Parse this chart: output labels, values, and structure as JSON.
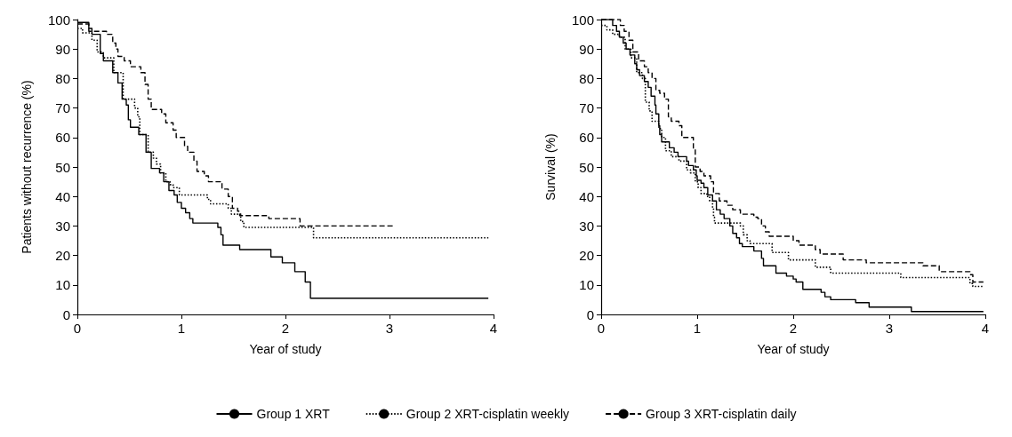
{
  "chart_data": [
    {
      "type": "step",
      "xlabel": "Year of study",
      "ylabel": "Patients without recurrence (%)",
      "xlim": [
        0,
        4
      ],
      "xticks": [
        0,
        1,
        2,
        3,
        4
      ],
      "ylim": [
        0,
        100
      ],
      "yticks": [
        0,
        10,
        20,
        30,
        40,
        50,
        60,
        70,
        80,
        90,
        100
      ],
      "grid": false,
      "legend": "bottom",
      "series": [
        {
          "name": "Group 1 XRT",
          "color": "#000000",
          "line_style": "solid",
          "x": [
            0,
            0.11,
            0.14,
            0.22,
            0.25,
            0.34,
            0.39,
            0.43,
            0.47,
            0.49,
            0.51,
            0.59,
            0.66,
            0.71,
            0.79,
            0.83,
            0.88,
            0.93,
            0.96,
            1.0,
            1.04,
            1.08,
            1.11,
            1.35,
            1.38,
            1.4,
            1.56,
            1.86,
            1.97,
            2.09,
            2.19,
            2.24,
            3.95
          ],
          "values": [
            99,
            97,
            95,
            88.5,
            86,
            82,
            78.5,
            73,
            71,
            66,
            63.5,
            61,
            55,
            49.5,
            48,
            45,
            42,
            40.5,
            38,
            36,
            34.5,
            32.5,
            31,
            29.5,
            27,
            23.5,
            22,
            19.5,
            17.5,
            14.5,
            11,
            5.5,
            5.5
          ]
        },
        {
          "name": "Group 2 XRT-cisplatin weekly",
          "color": "#000000",
          "line_style": "dotted",
          "x": [
            0,
            0.05,
            0.14,
            0.19,
            0.25,
            0.35,
            0.44,
            0.55,
            0.58,
            0.6,
            0.68,
            0.73,
            0.76,
            0.8,
            0.85,
            0.89,
            0.92,
            0.98,
            1.25,
            1.28,
            1.45,
            1.48,
            1.57,
            1.6,
            2.27,
            3.95
          ],
          "values": [
            97,
            95.5,
            93,
            89,
            87,
            82,
            73,
            70,
            67,
            61,
            55,
            53,
            51,
            48,
            45,
            44,
            43,
            40.5,
            39,
            37.5,
            36,
            34,
            31.5,
            29.5,
            26,
            26
          ]
        },
        {
          "name": "Group 3 XRT-cisplatin daily",
          "color": "#000000",
          "line_style": "dashed",
          "x": [
            0,
            0.11,
            0.28,
            0.34,
            0.37,
            0.39,
            0.45,
            0.51,
            0.61,
            0.65,
            0.68,
            0.71,
            0.81,
            0.85,
            0.92,
            0.95,
            1.03,
            1.06,
            1.12,
            1.15,
            1.22,
            1.26,
            1.39,
            1.45,
            1.49,
            1.54,
            1.56,
            1.84,
            2.14,
            3.04
          ],
          "values": [
            98.5,
            96,
            95,
            92,
            90,
            87.5,
            86,
            84,
            82,
            78,
            73,
            69.5,
            68,
            65,
            62.5,
            60,
            57,
            55,
            52,
            48.5,
            47,
            45,
            42.5,
            40,
            36,
            35,
            33.5,
            32.5,
            30,
            30
          ]
        }
      ]
    },
    {
      "type": "step",
      "xlabel": "Year of study",
      "ylabel": "Survival (%)",
      "xlim": [
        0,
        4
      ],
      "xticks": [
        0,
        1,
        2,
        3,
        4
      ],
      "ylim": [
        0,
        100
      ],
      "yticks": [
        0,
        10,
        20,
        30,
        40,
        50,
        60,
        70,
        80,
        90,
        100
      ],
      "grid": false,
      "series": [
        {
          "color": "#000000",
          "line_style": "solid",
          "x": [
            0,
            0.12,
            0.16,
            0.19,
            0.23,
            0.26,
            0.3,
            0.35,
            0.37,
            0.4,
            0.45,
            0.49,
            0.52,
            0.56,
            0.57,
            0.6,
            0.61,
            0.63,
            0.71,
            0.76,
            0.8,
            0.89,
            0.91,
            0.96,
            0.99,
            1.0,
            1.04,
            1.07,
            1.11,
            1.16,
            1.2,
            1.24,
            1.28,
            1.34,
            1.37,
            1.41,
            1.44,
            1.47,
            1.59,
            1.67,
            1.69,
            1.82,
            1.93,
            2.0,
            2.03,
            2.1,
            2.29,
            2.33,
            2.39,
            2.65,
            2.79,
            3.23,
            3.98
          ],
          "values": [
            100,
            98,
            96,
            94,
            92,
            90,
            88,
            85,
            83,
            81,
            79,
            77,
            74,
            71,
            68,
            64,
            61,
            58.5,
            56.5,
            55,
            53.5,
            52,
            50.5,
            49,
            47,
            45.5,
            44.5,
            43,
            40.5,
            38.5,
            35.5,
            34,
            32.5,
            30,
            27.5,
            26,
            24,
            23,
            21.5,
            19,
            16.5,
            14,
            13,
            12,
            11,
            8.5,
            7.5,
            6,
            5,
            4,
            2.5,
            1,
            1
          ]
        },
        {
          "color": "#000000",
          "line_style": "dotted",
          "x": [
            0,
            0.06,
            0.12,
            0.19,
            0.25,
            0.31,
            0.37,
            0.43,
            0.46,
            0.5,
            0.53,
            0.6,
            0.63,
            0.67,
            0.73,
            0.81,
            0.89,
            0.93,
            0.98,
            1.01,
            1.04,
            1.1,
            1.13,
            1.16,
            1.17,
            1.18,
            1.45,
            1.48,
            1.52,
            1.55,
            1.78,
            1.95,
            2.23,
            2.39,
            3.12,
            3.84,
            3.87,
            3.98
          ],
          "values": [
            98,
            96.5,
            95,
            94,
            90,
            87,
            82,
            80,
            72,
            69,
            65.5,
            63,
            60,
            55.5,
            53.5,
            52,
            49,
            48,
            45,
            43,
            41,
            40,
            38.5,
            36,
            33,
            31,
            30,
            27,
            25,
            24,
            21,
            18.5,
            16,
            14,
            12.5,
            10.5,
            9.5,
            9.5
          ]
        },
        {
          "color": "#000000",
          "line_style": "dashed",
          "x": [
            0,
            0.2,
            0.24,
            0.29,
            0.33,
            0.39,
            0.45,
            0.49,
            0.53,
            0.57,
            0.61,
            0.66,
            0.7,
            0.73,
            0.81,
            0.84,
            0.96,
            0.98,
            1.03,
            1.07,
            1.14,
            1.17,
            1.23,
            1.31,
            1.37,
            1.45,
            1.59,
            1.63,
            1.67,
            1.71,
            1.75,
            2.0,
            2.06,
            2.23,
            2.28,
            2.52,
            2.76,
            3.35,
            3.52,
            3.84,
            3.87,
            3.98
          ],
          "values": [
            100,
            98,
            96,
            93,
            89,
            86,
            84,
            82,
            80,
            76,
            75,
            73,
            67,
            65.5,
            64,
            60,
            56,
            50,
            48.5,
            47,
            45,
            41,
            38.5,
            37,
            35.5,
            34,
            33,
            32.5,
            30,
            28,
            26.5,
            25,
            23.5,
            22,
            20.5,
            18.5,
            17.5,
            16.5,
            14.5,
            13.5,
            11,
            11
          ]
        }
      ]
    }
  ]
}
